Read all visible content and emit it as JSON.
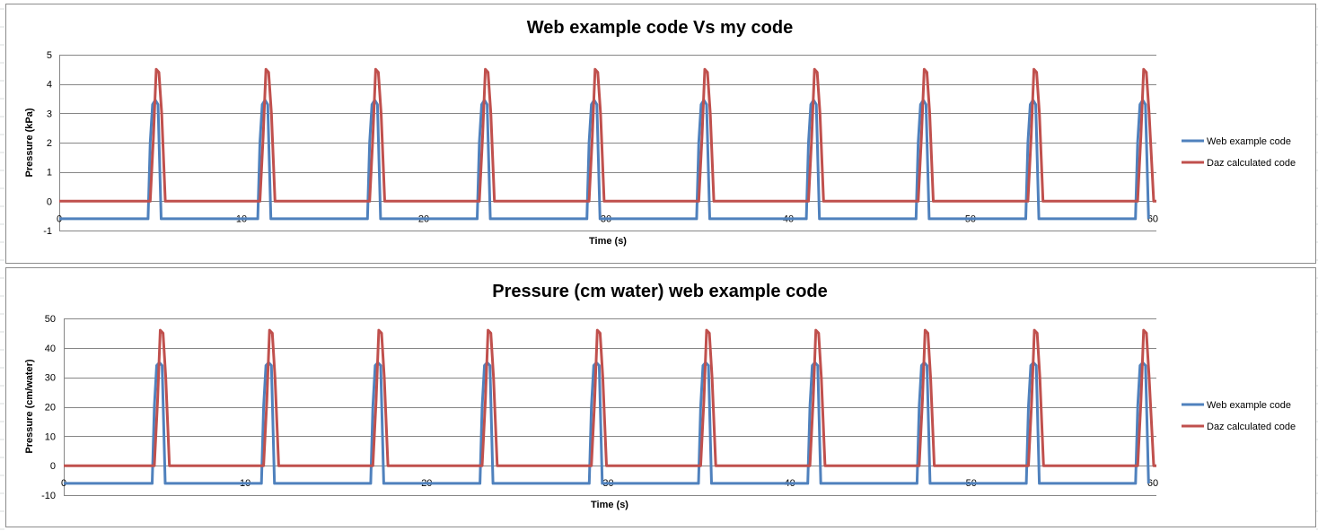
{
  "colors": {
    "web": "#4f81bd",
    "daz": "#c0504d",
    "grid": "#868686",
    "border": "#8c8c8c",
    "sheet_grid": "#dadcdd"
  },
  "chart_data": [
    {
      "type": "line",
      "title": "Web example code Vs my code",
      "xlabel": "Time (s)",
      "ylabel": "Pressure (kPa)",
      "xlim": [
        0,
        60.2
      ],
      "ylim": [
        -1,
        5
      ],
      "xticks": [
        0,
        10,
        20,
        30,
        40,
        50,
        60
      ],
      "xtick_labels": [
        "0",
        "10",
        "20",
        "30",
        "40",
        "50",
        "60"
      ],
      "yticks": [
        -1,
        0,
        1,
        2,
        3,
        4,
        5
      ],
      "ytick_labels": [
        "-1",
        "0",
        "1",
        "2",
        "3",
        "4",
        "5"
      ],
      "grid": "horizontal",
      "legend": "right",
      "series": [
        {
          "name": "Web example code",
          "color": "#4f81bd",
          "x": [
            0,
            4.87,
            4.99,
            5.12,
            5.27,
            5.42,
            5.59,
            10.89,
            11.01,
            11.14,
            11.29,
            11.44,
            11.61,
            16.91,
            17.03,
            17.16,
            17.31,
            17.46,
            17.63,
            22.93,
            23.05,
            23.18,
            23.33,
            23.48,
            23.65,
            28.95,
            29.07,
            29.2,
            29.35,
            29.5,
            29.67,
            34.97,
            35.09,
            35.22,
            35.37,
            35.52,
            35.69,
            40.99,
            41.11,
            41.24,
            41.39,
            41.54,
            41.71,
            47.01,
            47.13,
            47.26,
            47.41,
            47.56,
            47.73,
            53.03,
            53.15,
            53.28,
            53.43,
            53.58,
            53.75,
            59.05,
            59.17,
            59.3,
            59.45,
            59.6,
            59.77
          ],
          "y": [
            -0.6,
            -0.6,
            2.0,
            3.3,
            3.45,
            3.3,
            -0.6,
            -0.6,
            2.0,
            3.3,
            3.45,
            3.3,
            -0.6,
            -0.6,
            2.0,
            3.3,
            3.45,
            3.3,
            -0.6,
            -0.6,
            2.0,
            3.3,
            3.45,
            3.3,
            -0.6,
            -0.6,
            2.0,
            3.3,
            3.45,
            3.3,
            -0.6,
            -0.6,
            2.0,
            3.3,
            3.45,
            3.3,
            -0.6,
            -0.6,
            2.0,
            3.3,
            3.45,
            3.3,
            -0.6,
            -0.6,
            2.0,
            3.3,
            3.45,
            3.3,
            -0.6,
            -0.6,
            2.0,
            3.3,
            3.45,
            3.3,
            -0.6,
            -0.6,
            2.0,
            3.3,
            3.45,
            3.3,
            -0.6
          ]
        },
        {
          "name": "Daz calculated code",
          "color": "#c0504d",
          "x": [
            0,
            4.99,
            5.17,
            5.32,
            5.47,
            5.62,
            5.82,
            11.01,
            11.19,
            11.34,
            11.49,
            11.64,
            11.84,
            17.03,
            17.21,
            17.36,
            17.51,
            17.66,
            17.86,
            23.05,
            23.23,
            23.38,
            23.53,
            23.68,
            23.88,
            29.07,
            29.25,
            29.4,
            29.55,
            29.7,
            29.9,
            35.09,
            35.27,
            35.42,
            35.57,
            35.72,
            35.92,
            41.11,
            41.29,
            41.44,
            41.59,
            41.74,
            41.94,
            47.13,
            47.31,
            47.46,
            47.61,
            47.76,
            47.96,
            53.15,
            53.33,
            53.48,
            53.63,
            53.78,
            53.98,
            59.17,
            59.35,
            59.5,
            59.65,
            59.8,
            60.05,
            60.2
          ],
          "y": [
            0,
            0,
            2.2,
            4.5,
            4.4,
            3.0,
            0,
            0,
            2.2,
            4.5,
            4.4,
            3.0,
            0,
            0,
            2.2,
            4.5,
            4.4,
            3.0,
            0,
            0,
            2.2,
            4.5,
            4.4,
            3.0,
            0,
            0,
            2.2,
            4.5,
            4.4,
            3.0,
            0,
            0,
            2.2,
            4.5,
            4.4,
            3.0,
            0,
            0,
            2.2,
            4.5,
            4.4,
            3.0,
            0,
            0,
            2.2,
            4.5,
            4.4,
            3.0,
            0,
            0,
            2.2,
            4.5,
            4.4,
            3.0,
            0,
            0,
            2.2,
            4.5,
            4.4,
            3.0,
            0,
            0
          ]
        }
      ]
    },
    {
      "type": "line",
      "title": "Pressure (cm water) web example code",
      "xlabel": "Time (s)",
      "ylabel": "Pressure (cm/water)",
      "xlim": [
        0,
        60.2
      ],
      "ylim": [
        -10,
        50
      ],
      "xticks": [
        0,
        10,
        20,
        30,
        40,
        50,
        60
      ],
      "xtick_labels": [
        "0",
        "10",
        "20",
        "30",
        "40",
        "50",
        "60"
      ],
      "yticks": [
        -10,
        0,
        10,
        20,
        30,
        40,
        50
      ],
      "ytick_labels": [
        "-10",
        "0",
        "10",
        "20",
        "30",
        "40",
        "50"
      ],
      "grid": "horizontal",
      "legend": "right",
      "series": [
        {
          "name": "Web example code",
          "color": "#4f81bd",
          "x": [
            0,
            4.87,
            4.99,
            5.12,
            5.27,
            5.42,
            5.59,
            10.89,
            11.01,
            11.14,
            11.29,
            11.44,
            11.61,
            16.91,
            17.03,
            17.16,
            17.31,
            17.46,
            17.63,
            22.93,
            23.05,
            23.18,
            23.33,
            23.48,
            23.65,
            28.95,
            29.07,
            29.2,
            29.35,
            29.5,
            29.67,
            34.97,
            35.09,
            35.22,
            35.37,
            35.52,
            35.69,
            40.99,
            41.11,
            41.24,
            41.39,
            41.54,
            41.71,
            47.01,
            47.13,
            47.26,
            47.41,
            47.56,
            47.73,
            53.03,
            53.15,
            53.28,
            53.43,
            53.58,
            53.75,
            59.05,
            59.17,
            59.3,
            59.45,
            59.6,
            59.77
          ],
          "y": [
            -6,
            -6,
            20,
            34,
            35,
            34,
            -6,
            -6,
            20,
            34,
            35,
            34,
            -6,
            -6,
            20,
            34,
            35,
            34,
            -6,
            -6,
            20,
            34,
            35,
            34,
            -6,
            -6,
            20,
            34,
            35,
            34,
            -6,
            -6,
            20,
            34,
            35,
            34,
            -6,
            -6,
            20,
            34,
            35,
            34,
            -6,
            -6,
            20,
            34,
            35,
            34,
            -6,
            -6,
            20,
            34,
            35,
            34,
            -6,
            -6,
            20,
            34,
            35,
            34,
            -6
          ]
        },
        {
          "name": "Daz calculated code",
          "color": "#c0504d",
          "x": [
            0,
            4.99,
            5.17,
            5.32,
            5.47,
            5.62,
            5.82,
            11.01,
            11.19,
            11.34,
            11.49,
            11.64,
            11.84,
            17.03,
            17.21,
            17.36,
            17.51,
            17.66,
            17.86,
            23.05,
            23.23,
            23.38,
            23.53,
            23.68,
            23.88,
            29.07,
            29.25,
            29.4,
            29.55,
            29.7,
            29.9,
            35.09,
            35.27,
            35.42,
            35.57,
            35.72,
            35.92,
            41.11,
            41.29,
            41.44,
            41.59,
            41.74,
            41.94,
            47.13,
            47.31,
            47.46,
            47.61,
            47.76,
            47.96,
            53.15,
            53.33,
            53.48,
            53.63,
            53.78,
            53.98,
            59.17,
            59.35,
            59.5,
            59.65,
            59.8,
            60.05,
            60.2
          ],
          "y": [
            0,
            0,
            22,
            46,
            45,
            30,
            0,
            0,
            22,
            46,
            45,
            30,
            0,
            0,
            22,
            46,
            45,
            30,
            0,
            0,
            22,
            46,
            45,
            30,
            0,
            0,
            22,
            46,
            45,
            30,
            0,
            0,
            22,
            46,
            45,
            30,
            0,
            0,
            22,
            46,
            45,
            30,
            0,
            0,
            22,
            46,
            45,
            30,
            0,
            0,
            22,
            46,
            45,
            30,
            0,
            0,
            22,
            46,
            45,
            30,
            0,
            0
          ]
        }
      ]
    }
  ]
}
